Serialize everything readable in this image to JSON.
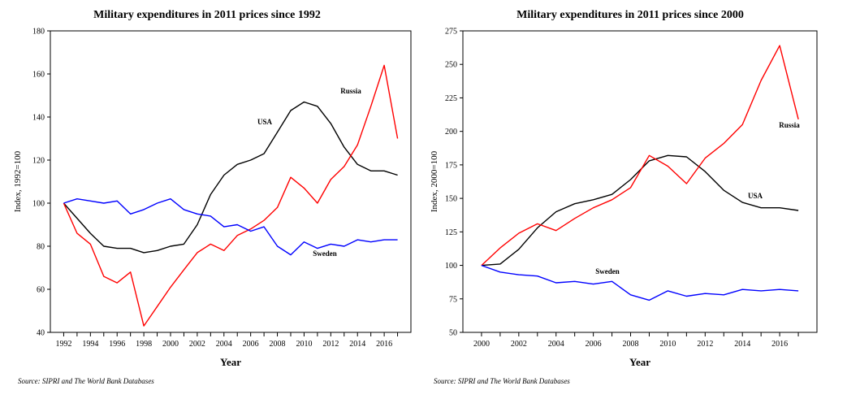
{
  "chart_data": [
    {
      "type": "line",
      "title": "Military expenditures in 2011 prices since 1992",
      "xlabel": "Year",
      "ylabel": "Index, 1992=100",
      "xlim": [
        1991,
        2018
      ],
      "ylim": [
        40,
        180
      ],
      "yticks": [
        40,
        60,
        80,
        100,
        120,
        140,
        160,
        180
      ],
      "xticks": [
        1992,
        1994,
        1996,
        1998,
        2000,
        2002,
        2004,
        2006,
        2008,
        2010,
        2012,
        2014,
        2016
      ],
      "x": [
        1992,
        1993,
        1994,
        1995,
        1996,
        1997,
        1998,
        1999,
        2000,
        2001,
        2002,
        2003,
        2004,
        2005,
        2006,
        2007,
        2008,
        2009,
        2010,
        2011,
        2012,
        2013,
        2014,
        2015,
        2016,
        2017
      ],
      "grid": false,
      "series": [
        {
          "name": "USA",
          "color": "#000000",
          "values": [
            100,
            93,
            86,
            80,
            79,
            79,
            77,
            78,
            80,
            81,
            90,
            104,
            113,
            118,
            120,
            123,
            133,
            143,
            147,
            145,
            137,
            126,
            118,
            115,
            115,
            113
          ]
        },
        {
          "name": "Russia",
          "color": "#ff0000",
          "values": [
            100,
            86,
            81,
            66,
            63,
            68,
            43,
            52,
            61,
            69,
            77,
            81,
            78,
            85,
            88,
            92,
            98,
            112,
            107,
            100,
            111,
            117,
            127,
            145,
            164,
            130
          ]
        },
        {
          "name": "Sweden",
          "color": "#0000ff",
          "values": [
            100,
            102,
            101,
            100,
            101,
            95,
            97,
            100,
            102,
            97,
            95,
            94,
            89,
            90,
            87,
            89,
            80,
            76,
            82,
            79,
            81,
            80,
            83,
            82,
            83,
            83
          ]
        }
      ],
      "source": "Source: SIPRI and The World Bank Databases"
    },
    {
      "type": "line",
      "title": "Military expenditures in 2011 prices since 2000",
      "xlabel": "Year",
      "ylabel": "Index, 2000=100",
      "xlim": [
        1999,
        2018
      ],
      "ylim": [
        50,
        275
      ],
      "yticks": [
        50,
        75,
        100,
        125,
        150,
        175,
        200,
        225,
        250,
        275
      ],
      "xticks": [
        2000,
        2002,
        2004,
        2006,
        2008,
        2010,
        2012,
        2014,
        2016
      ],
      "x": [
        2000,
        2001,
        2002,
        2003,
        2004,
        2005,
        2006,
        2007,
        2008,
        2009,
        2010,
        2011,
        2012,
        2013,
        2014,
        2015,
        2016,
        2017
      ],
      "grid": false,
      "series": [
        {
          "name": "USA",
          "color": "#000000",
          "values": [
            100,
            101,
            112,
            128,
            140,
            146,
            149,
            153,
            164,
            178,
            182,
            181,
            170,
            156,
            147,
            143,
            143,
            141
          ]
        },
        {
          "name": "Russia",
          "color": "#ff0000",
          "values": [
            100,
            113,
            124,
            131,
            126,
            135,
            143,
            149,
            158,
            182,
            174,
            161,
            180,
            191,
            205,
            238,
            264,
            209
          ]
        },
        {
          "name": "Sweden",
          "color": "#0000ff",
          "values": [
            100,
            95,
            93,
            92,
            87,
            88,
            86,
            88,
            78,
            74,
            81,
            77,
            79,
            78,
            82,
            81,
            82,
            81
          ]
        }
      ],
      "source": "Source: SIPRI and The World Bank Databases"
    }
  ]
}
